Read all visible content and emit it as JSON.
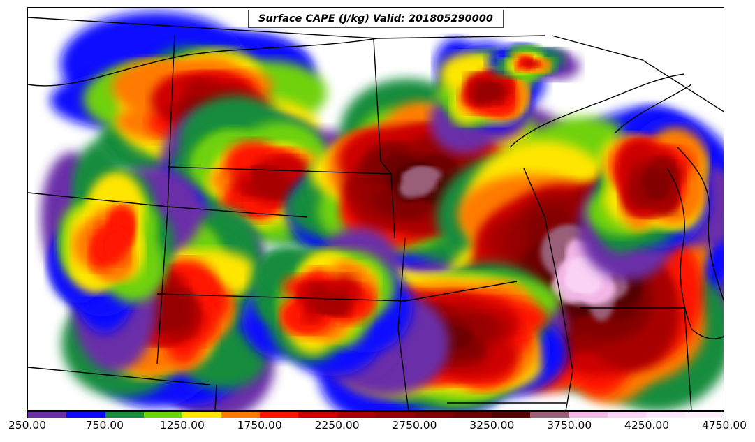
{
  "title": "Surface CAPE (J/kg) Valid: 201805290000",
  "map": {
    "variable": "Surface CAPE",
    "units": "J/kg",
    "valid_time": "201805290000"
  },
  "colorbar": {
    "ticks": [
      "250.00",
      "750.00",
      "1250.00",
      "1750.00",
      "2250.00",
      "2750.00",
      "3250.00",
      "3750.00",
      "4250.00",
      "4750.00"
    ],
    "levels": [
      250,
      500,
      750,
      1000,
      1250,
      1500,
      1750,
      2000,
      2250,
      2500,
      2750,
      3000,
      3250,
      3500,
      3750,
      4000,
      4250,
      4500
    ],
    "colors": [
      "#6a2ea8",
      "#0a0aff",
      "#148c3c",
      "#6fd20a",
      "#ffe600",
      "#ff7a00",
      "#ff1400",
      "#cc0000",
      "#a80000",
      "#960000",
      "#820000",
      "#6e0000",
      "#550000",
      "#9a5f78",
      "#f2b6e6",
      "#fad2f5",
      "#fce6fa",
      "#fff0ff"
    ]
  }
}
